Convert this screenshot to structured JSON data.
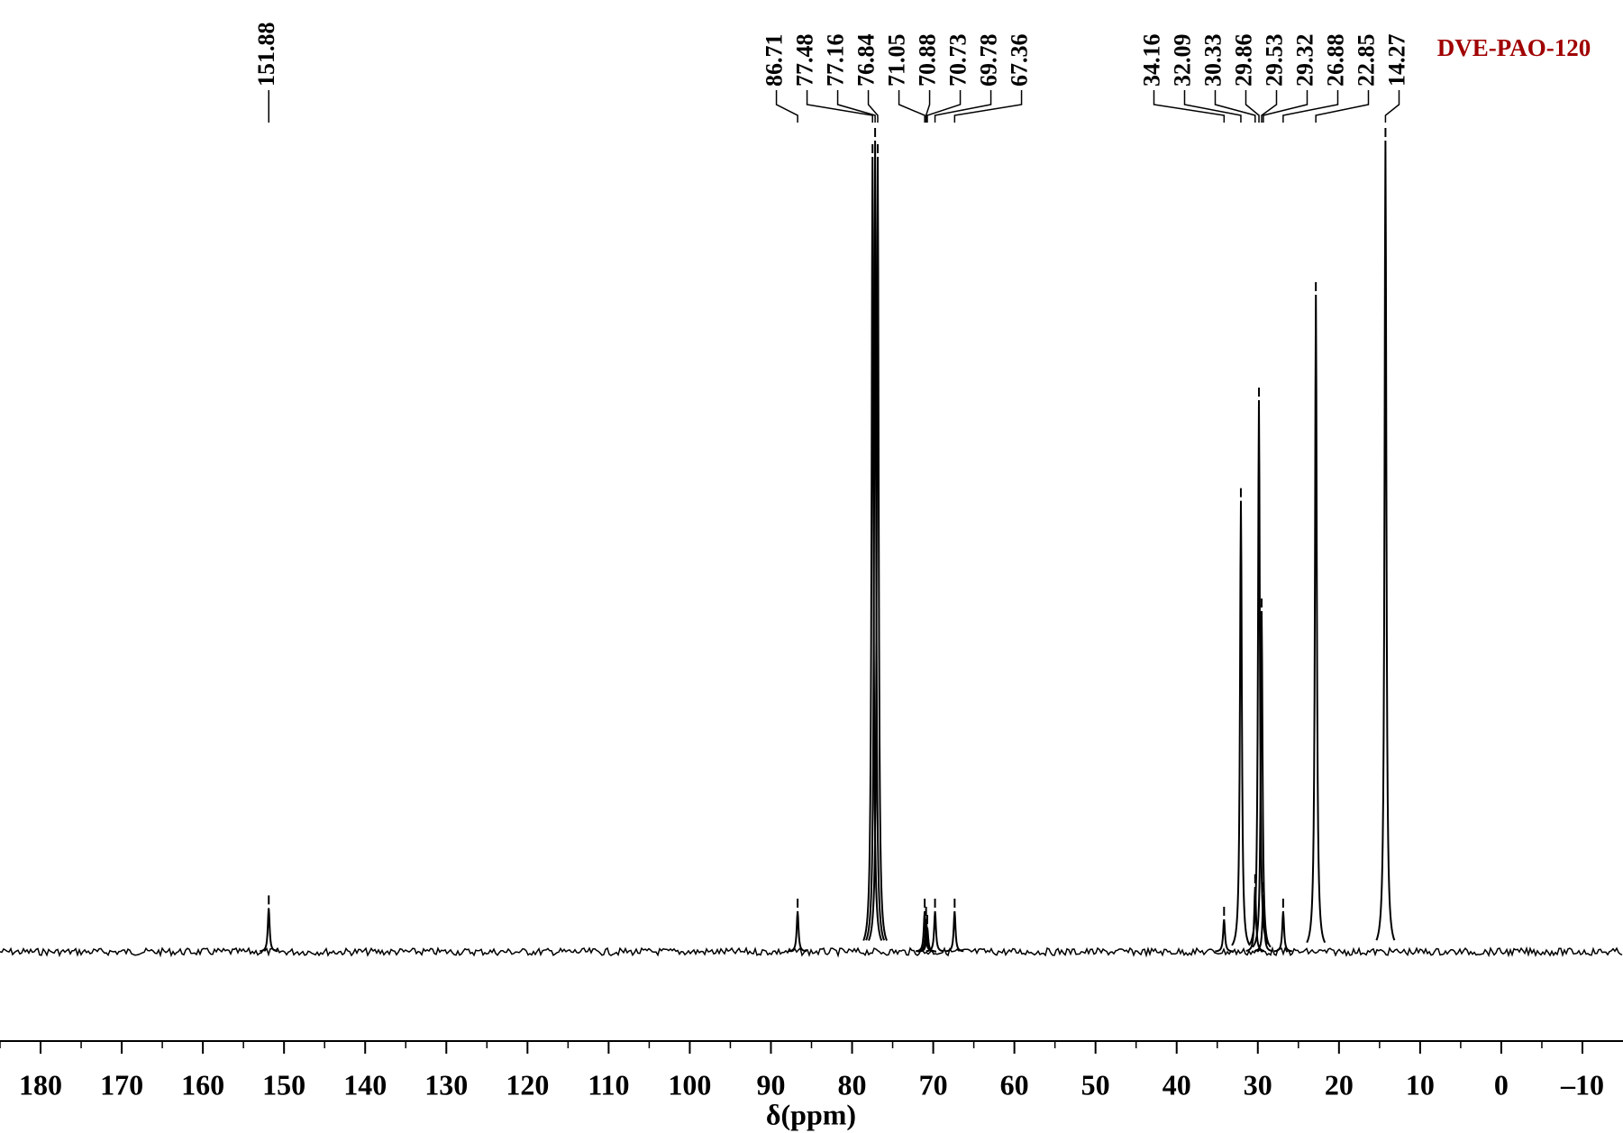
{
  "chart_data": {
    "type": "spectrum",
    "title": "DVE-PAO-120",
    "title_color": "#a00000",
    "xlabel": "δ(ppm)",
    "color": "#000000",
    "x": [
      151.88,
      86.71,
      77.48,
      77.16,
      76.84,
      71.05,
      70.88,
      70.73,
      69.78,
      67.36,
      34.16,
      32.09,
      30.33,
      29.86,
      29.53,
      29.32,
      26.88,
      22.85,
      14.27
    ],
    "values": [
      5.4,
      5,
      98,
      100,
      98,
      5,
      4,
      3,
      5,
      5,
      4,
      55.6,
      8,
      68,
      42,
      7,
      5,
      81,
      100
    ],
    "xlim": [
      185,
      -15
    ],
    "ylim": [
      -11,
      100
    ],
    "xticks": [
      180,
      170,
      160,
      150,
      140,
      130,
      120,
      110,
      100,
      90,
      80,
      70,
      60,
      50,
      40,
      30,
      20,
      10,
      0,
      {
        "value": -10,
        "label": "–10"
      }
    ]
  }
}
